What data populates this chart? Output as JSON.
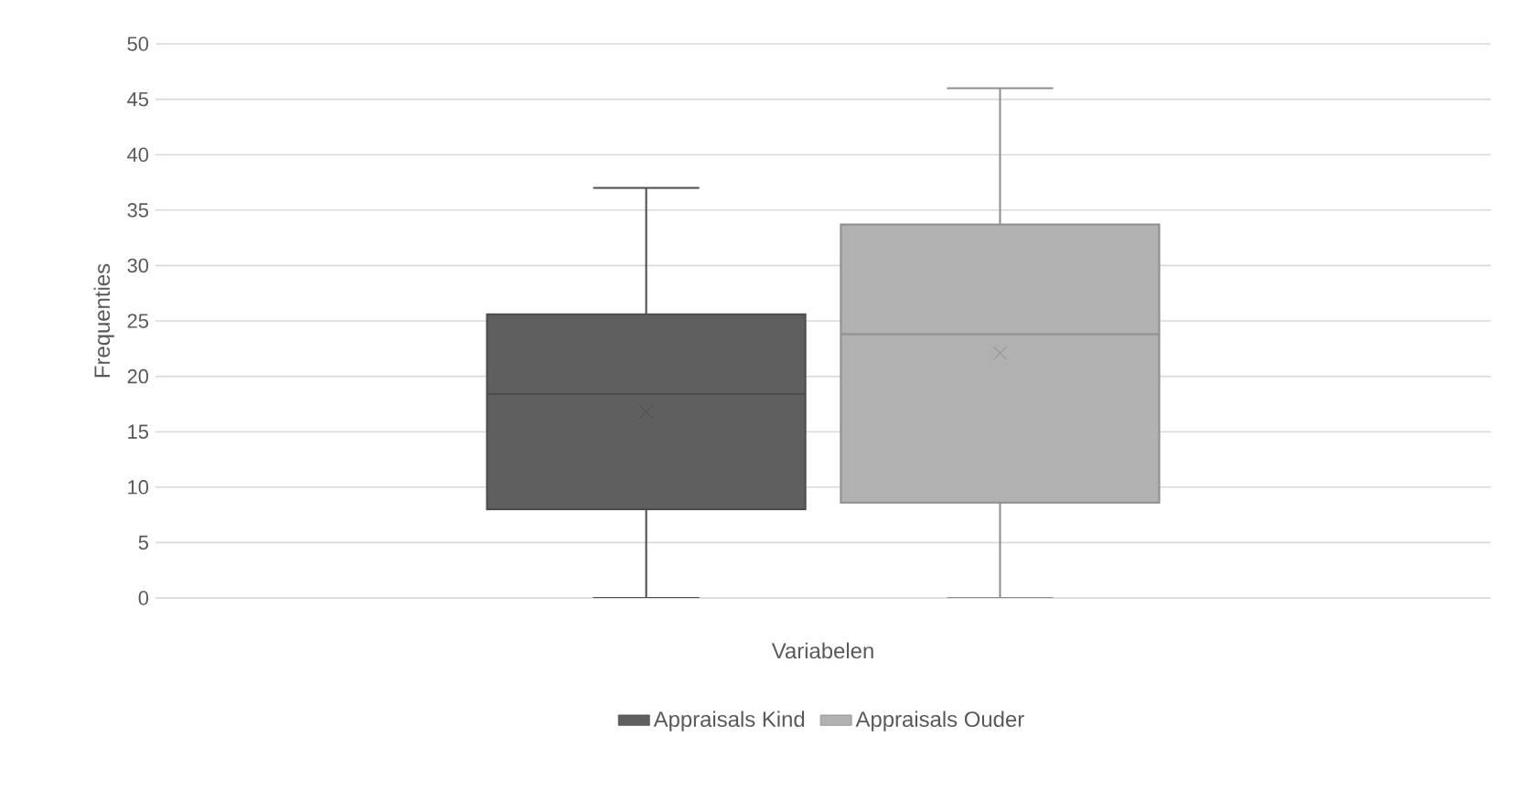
{
  "chart_data": {
    "type": "box",
    "xlabel": "Variabelen",
    "ylabel": "Frequenties",
    "categories": [
      null
    ],
    "series": [
      {
        "name": "Appraisals Kind",
        "color": "#5f5f5f",
        "boxes": [
          {
            "low": 0,
            "q1": 8,
            "median": 18.4,
            "q3": 25.6,
            "high": 37,
            "mean": 16.8
          }
        ]
      },
      {
        "name": "Appraisals Ouder",
        "color": "#b1b1b1",
        "boxes": [
          {
            "low": 0,
            "q1": 8.6,
            "median": 23.8,
            "q3": 33.7,
            "high": 46,
            "mean": 22.1
          }
        ]
      }
    ],
    "ylim": [
      0,
      50
    ],
    "yticks": [
      0,
      5,
      10,
      15,
      20,
      25,
      30,
      35,
      40,
      45,
      50
    ],
    "grid": "y",
    "legend": "bottom",
    "marker": "cross"
  }
}
